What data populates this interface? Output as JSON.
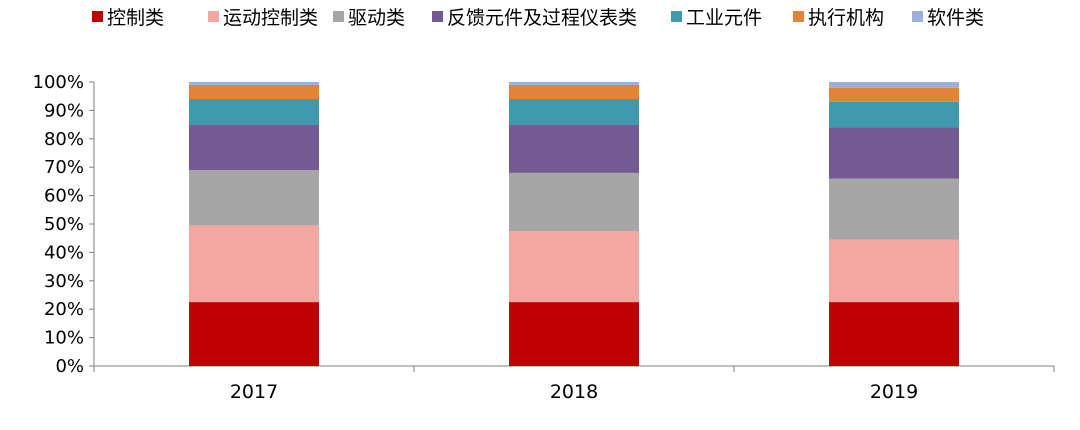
{
  "chart_data": {
    "type": "bar",
    "stacked": true,
    "percent": true,
    "categories": [
      "2017",
      "2018",
      "2019"
    ],
    "series": [
      {
        "name": "控制类",
        "color": "#c00000",
        "values": [
          22.5,
          22.5,
          22.5
        ]
      },
      {
        "name": "运动控制类",
        "color": "#f4a6a0",
        "values": [
          27,
          25,
          22
        ]
      },
      {
        "name": "驱动类",
        "color": "#a6a6a6",
        "values": [
          19.5,
          20.5,
          21.5
        ]
      },
      {
        "name": "反馈元件及过程仪表类",
        "color": "#745a92",
        "values": [
          16,
          17,
          18
        ]
      },
      {
        "name": "工业元件",
        "color": "#3f9aae",
        "values": [
          9,
          9,
          9
        ]
      },
      {
        "name": "执行机构",
        "color": "#e08439",
        "values": [
          5,
          5,
          5
        ]
      },
      {
        "name": "软件类",
        "color": "#9bb0d9",
        "values": [
          1,
          1,
          2
        ]
      }
    ],
    "ylim": [
      0,
      100
    ],
    "yticks": [
      "0%",
      "10%",
      "20%",
      "30%",
      "40%",
      "50%",
      "60%",
      "70%",
      "80%",
      "90%",
      "100%"
    ],
    "grid": false,
    "legend_position": "top"
  }
}
